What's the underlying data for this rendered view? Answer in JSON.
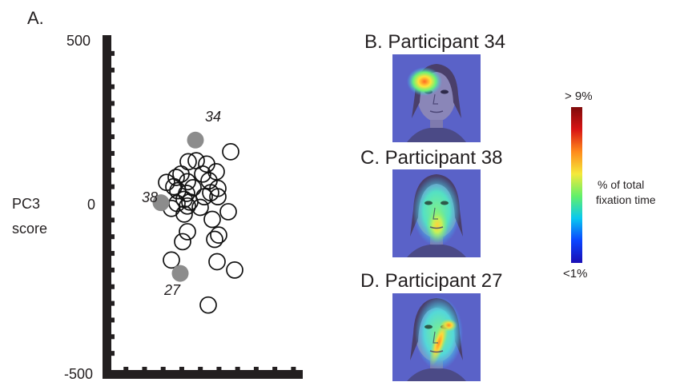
{
  "figure": {
    "panel_a_label": "A.",
    "panel_b_title": "B. Participant 34",
    "panel_c_title": "C. Participant 38",
    "panel_d_title": "D. Participant 27",
    "colorbar": {
      "max_label": "> 9%",
      "min_label": "<1%",
      "title_line1": "% of total",
      "title_line2": "fixation time",
      "colors": [
        "#1a0eb4",
        "#0a44ff",
        "#08c8f0",
        "#62f06a",
        "#f5e93a",
        "#ff8a1c",
        "#d81414",
        "#7f0b0b"
      ]
    },
    "face_heatmap_colors": {
      "background": "#5a62c8",
      "low": "#3fb6ff",
      "mid": "#67f07a",
      "high": "#ffe33a",
      "peak": "#ff6a22"
    }
  },
  "chart_data": {
    "type": "scatter",
    "title": "",
    "xlabel": "",
    "ylabel": "PC3 score",
    "ylabel_line1": "PC3",
    "ylabel_line2": "score",
    "ylim": [
      -500,
      500
    ],
    "yticks": [
      -500,
      0,
      500
    ],
    "ytick_labels": [
      "-500",
      "0",
      "500"
    ],
    "minor_tick_step": 50,
    "xlim": [
      -100,
      100
    ],
    "marker_style": "open circle",
    "highlight_color": "#8c8c8c",
    "points": [
      {
        "x": 7,
        "y": 20
      },
      {
        "x": 40,
        "y": 155
      },
      {
        "x": -13,
        "y": 125
      },
      {
        "x": -3,
        "y": 128
      },
      {
        "x": 10,
        "y": 118
      },
      {
        "x": 22,
        "y": 95
      },
      {
        "x": -22,
        "y": 88
      },
      {
        "x": 5,
        "y": 88
      },
      {
        "x": -28,
        "y": 78
      },
      {
        "x": -40,
        "y": 63
      },
      {
        "x": -14,
        "y": 65
      },
      {
        "x": 13,
        "y": 68
      },
      {
        "x": -31,
        "y": 50
      },
      {
        "x": -7,
        "y": 47
      },
      {
        "x": 24,
        "y": 45
      },
      {
        "x": -26,
        "y": 38
      },
      {
        "x": -15,
        "y": 30
      },
      {
        "x": 15,
        "y": 32
      },
      {
        "x": -18,
        "y": 12
      },
      {
        "x": 24,
        "y": 20
      },
      {
        "x": -11,
        "y": 4
      },
      {
        "x": -27,
        "y": 0
      },
      {
        "x": -14,
        "y": -8
      },
      {
        "x": 2,
        "y": -12
      },
      {
        "x": 37,
        "y": -25
      },
      {
        "x": -34,
        "y": -15
      },
      {
        "x": -18,
        "y": -32
      },
      {
        "x": 17,
        "y": -48
      },
      {
        "x": -14,
        "y": -85
      },
      {
        "x": 25,
        "y": -95
      },
      {
        "x": -20,
        "y": -115
      },
      {
        "x": 20,
        "y": -108
      },
      {
        "x": -34,
        "y": -170
      },
      {
        "x": 23,
        "y": -175
      },
      {
        "x": 45,
        "y": -200
      },
      {
        "x": 12,
        "y": -305
      }
    ],
    "highlighted": [
      {
        "label": "34",
        "x": -4,
        "y": 190
      },
      {
        "label": "38",
        "x": -47,
        "y": 2
      },
      {
        "label": "27",
        "x": -23,
        "y": -210
      }
    ]
  }
}
